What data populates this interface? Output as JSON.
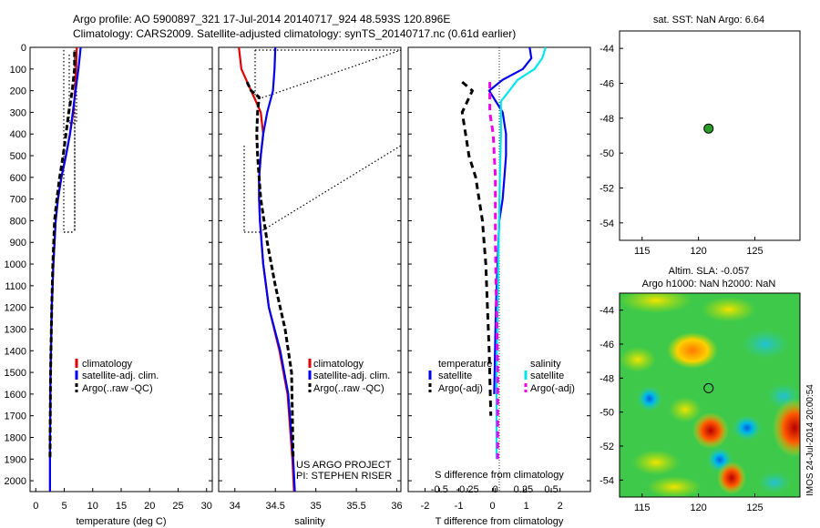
{
  "header": {
    "line1": "Argo profile: AO 5900897_321 17-Jul-2014 20140717_924 48.593S 120.896E",
    "line2": "Climatology: CARS2009. Satellite-adjusted climatology: synTS_20140717.nc (0.61d earlier)"
  },
  "colors": {
    "clim": "#e00000",
    "sat": "#0000ee",
    "argo": "#000000",
    "sat_cyan": "#00e5ee",
    "argo_mag": "#ee00ee",
    "dot": "#2a9d2a"
  },
  "depth_ticks": [
    "0",
    "100",
    "200",
    "300",
    "400",
    "500",
    "600",
    "700",
    "800",
    "900",
    "1000",
    "1100",
    "1200",
    "1300",
    "1400",
    "1500",
    "1600",
    "1700",
    "1800",
    "1900",
    "2000"
  ],
  "panel_t": {
    "xlabel": "temperature (deg C)",
    "xticks": [
      "0",
      "5",
      "10",
      "15",
      "20",
      "25",
      "30"
    ],
    "legend": [
      "climatology",
      "satellite-adj. clim.",
      "Argo(..raw -QC)"
    ]
  },
  "panel_s": {
    "xlabel": "salinity",
    "xticks": [
      "34",
      "34.5",
      "35",
      "35.5",
      "36"
    ],
    "legend": [
      "climatology",
      "satellite-adj. clim.",
      "Argo(..raw -QC)"
    ],
    "credit1": "US ARGO PROJECT",
    "credit2": "PI: STEPHEN RISER"
  },
  "panel_d": {
    "xlabel": "T difference from climatology",
    "xlabel_top": "S difference from climatology",
    "xticks": [
      "-2",
      "-1",
      "0",
      "1",
      "2"
    ],
    "sticks": [
      "-0.5",
      "-0.25",
      "0",
      "0.25",
      "0.5"
    ],
    "legend_t_head": "temperature",
    "legend_s_head": "salinity",
    "legend_t": [
      "satellite",
      "Argo(-adj)"
    ],
    "legend_s": [
      "satellite",
      "Argo(-adj)"
    ]
  },
  "map_top": {
    "title": "sat. SST: NaN Argo: 6.64",
    "yticks": [
      "-44",
      "-46",
      "-48",
      "-50",
      "-52",
      "-54"
    ],
    "xticks": [
      "115",
      "120",
      "125"
    ]
  },
  "map_bot": {
    "title1": "Altim. SLA: -0.057",
    "title2": "Argo h1000: NaN h2000: NaN",
    "yticks": [
      "-44",
      "-46",
      "-48",
      "-50",
      "-52",
      "-54"
    ],
    "xticks": [
      "115",
      "120",
      "125"
    ],
    "stamp": "IMOS 24-Jul-2014 20:00:54"
  },
  "chart_data": [
    {
      "type": "line",
      "ylabel": "",
      "xlabel": "temperature (deg C)",
      "xlim": [
        -1,
        31
      ],
      "ylim": [
        2050,
        0
      ],
      "series": [
        {
          "name": "climatology",
          "x": [
            7.2,
            7.1,
            6.9,
            6.6,
            6.0,
            5.3,
            4.5,
            3.9,
            3.5,
            3.1,
            2.8,
            2.6,
            2.5,
            2.5
          ],
          "y": [
            0,
            100,
            200,
            300,
            400,
            500,
            600,
            700,
            800,
            1000,
            1200,
            1500,
            1800,
            2050
          ]
        },
        {
          "name": "satellite-adj. clim.",
          "x": [
            7.9,
            7.5,
            7.0,
            6.5,
            6.0,
            5.3,
            4.5,
            3.9,
            3.5,
            3.1,
            2.8,
            2.6,
            2.5,
            2.5
          ],
          "y": [
            0,
            100,
            200,
            300,
            400,
            500,
            600,
            700,
            800,
            1000,
            1200,
            1500,
            1800,
            2050
          ]
        },
        {
          "name": "Argo(..raw -QC)",
          "x": [
            6.8,
            6.8,
            6.4,
            5.8,
            5.3,
            4.8,
            4.2,
            3.7,
            3.3,
            3.0,
            2.8,
            2.6,
            2.5
          ],
          "y": [
            20,
            100,
            200,
            300,
            400,
            500,
            600,
            700,
            800,
            1000,
            1200,
            1500,
            1900
          ]
        }
      ]
    },
    {
      "type": "line",
      "xlabel": "salinity",
      "xlim": [
        33.8,
        36.05
      ],
      "ylim": [
        2050,
        0
      ],
      "series": [
        {
          "name": "climatology",
          "x": [
            34.05,
            34.08,
            34.2,
            34.32,
            34.35,
            34.32,
            34.3,
            34.3,
            34.31,
            34.35,
            34.42,
            34.55,
            34.65,
            34.71,
            34.73
          ],
          "y": [
            0,
            100,
            200,
            300,
            400,
            500,
            600,
            700,
            800,
            1000,
            1200,
            1400,
            1600,
            1900,
            2050
          ]
        },
        {
          "name": "satellite-adj. clim.",
          "x": [
            34.5,
            34.49,
            34.47,
            34.4,
            34.35,
            34.32,
            34.3,
            34.3,
            34.31,
            34.35,
            34.42,
            34.56,
            34.66,
            34.72,
            34.74
          ],
          "y": [
            0,
            100,
            200,
            300,
            400,
            500,
            600,
            700,
            800,
            1000,
            1200,
            1400,
            1600,
            1900,
            2050
          ]
        },
        {
          "name": "Argo(..raw -QC)",
          "x": [
            34.15,
            34.2,
            34.3,
            34.28,
            34.27,
            34.28,
            34.3,
            34.32,
            34.4,
            34.5,
            34.62,
            34.7,
            34.72
          ],
          "y": [
            160,
            200,
            230,
            300,
            400,
            500,
            600,
            700,
            900,
            1100,
            1300,
            1500,
            1900
          ]
        }
      ]
    },
    {
      "type": "line",
      "xlabel": "T difference from climatology",
      "xlim": [
        -2.5,
        2.9
      ],
      "ylim": [
        2050,
        0
      ],
      "series": [
        {
          "name": "temperature satellite",
          "x": [
            1.1,
            1.15,
            0.9,
            0.3,
            -0.1,
            0.3,
            0.4,
            0.4,
            0.35,
            0.3,
            0.2,
            0.15,
            0.1,
            0.05
          ],
          "y": [
            0,
            50,
            100,
            150,
            200,
            300,
            400,
            500,
            600,
            700,
            800,
            1000,
            1200,
            1600
          ]
        },
        {
          "name": "temperature Argo(-adj)",
          "x": [
            -0.9,
            -0.6,
            -0.9,
            -0.8,
            -0.7,
            -0.5,
            -0.4,
            -0.3,
            -0.25,
            -0.2,
            -0.15,
            -0.1,
            -0.05
          ],
          "y": [
            160,
            200,
            300,
            400,
            500,
            600,
            700,
            800,
            900,
            1000,
            1200,
            1400,
            1700
          ]
        }
      ]
    },
    {
      "type": "line",
      "xlabel": "S difference from climatology",
      "xlim": [
        -0.78,
        0.85
      ],
      "ylim": [
        2050,
        0
      ],
      "series": [
        {
          "name": "salinity satellite",
          "x": [
            0.45,
            0.42,
            0.35,
            0.2,
            0.05,
            0.05,
            0.04,
            0.03,
            0.02,
            0.01,
            0.01
          ],
          "y": [
            0,
            50,
            100,
            150,
            250,
            400,
            600,
            900,
            1200,
            1500,
            1900
          ]
        },
        {
          "name": "salinity Argo(-adj)",
          "x": [
            -0.05,
            -0.05,
            -0.05,
            -0.02,
            0.0,
            0.0,
            0.01,
            0.02,
            0.02
          ],
          "y": [
            160,
            200,
            300,
            400,
            600,
            900,
            1200,
            1500,
            1900
          ]
        }
      ]
    },
    {
      "type": "scatter",
      "title": "sat. SST: NaN Argo: 6.64",
      "xlim": [
        113,
        129
      ],
      "ylim": [
        -55,
        -43
      ],
      "points": [
        {
          "x": 120.896,
          "y": -48.593
        }
      ]
    }
  ]
}
